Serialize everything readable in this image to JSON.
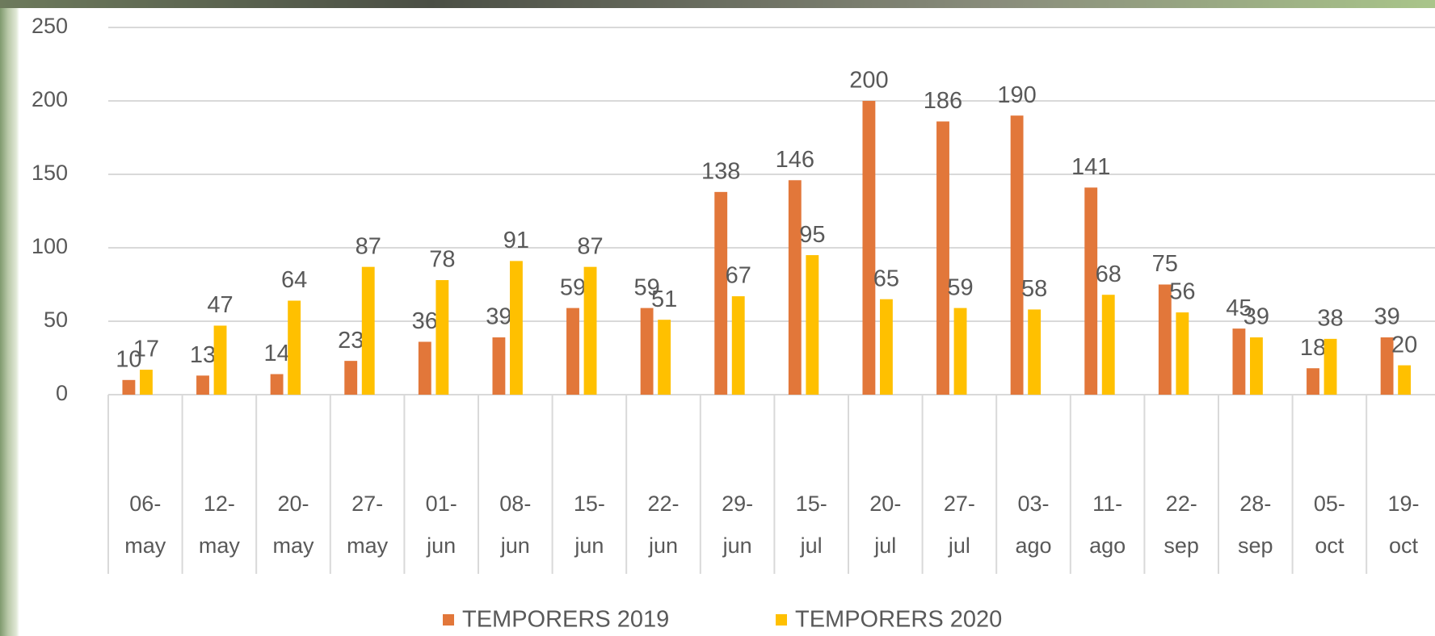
{
  "chart_data": {
    "type": "bar",
    "categories": [
      "06-may",
      "12-may",
      "20-may",
      "27-may",
      "01-jun",
      "08-jun",
      "15-jun",
      "22-jun",
      "29-jun",
      "15-jul",
      "20-jul",
      "27-jul",
      "03-ago",
      "11-ago",
      "22-sep",
      "28-sep",
      "05-oct",
      "19-oct"
    ],
    "series": [
      {
        "name": "TEMPORERS 2019",
        "color": "#e2773a",
        "values": [
          10,
          13,
          14,
          23,
          36,
          39,
          59,
          59,
          138,
          146,
          200,
          186,
          190,
          141,
          75,
          45,
          18,
          39
        ]
      },
      {
        "name": "TEMPORERS 2020",
        "color": "#ffc000",
        "values": [
          17,
          47,
          64,
          87,
          78,
          91,
          87,
          51,
          67,
          95,
          65,
          59,
          58,
          68,
          56,
          39,
          38,
          20
        ]
      }
    ],
    "ylim": [
      0,
      250
    ],
    "yticks": [
      0,
      50,
      100,
      150,
      200,
      250
    ],
    "grid": true
  }
}
